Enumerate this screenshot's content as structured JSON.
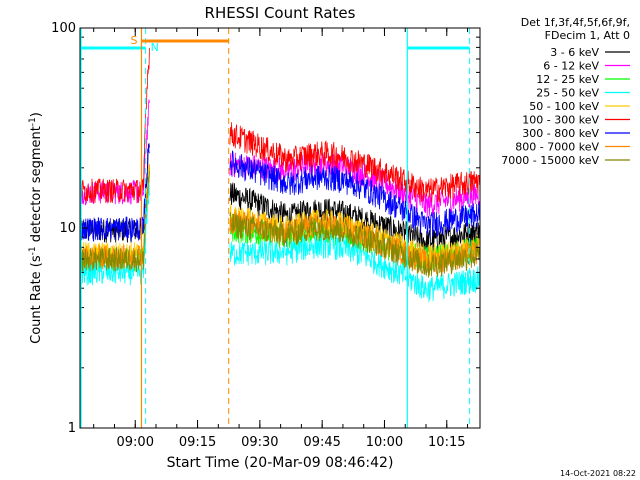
{
  "chart_data": {
    "type": "line",
    "title": "RHESSI Count Rates",
    "xlabel": "Start Time (20-Mar-09 08:46:42)",
    "ylabel_main": "Count Rate (s",
    "ylabel_sup1": "-1",
    "ylabel_mid": " detector segment",
    "ylabel_sup2": "-1",
    "ylabel_end": ")",
    "y_scale": "log",
    "ylim": [
      1,
      100
    ],
    "x_range_minutes": [
      "08:46:42",
      "10:23:00"
    ],
    "x_ticks": [
      "09:00",
      "09:15",
      "09:30",
      "09:45",
      "10:00",
      "10:15"
    ],
    "y_ticks": [
      "1",
      "10",
      "100"
    ],
    "legend_header_1": "Det 1f,3f,4f,5f,6f,9f,",
    "legend_header_2": "FDecim 1, Att 0",
    "legend_placement": "right",
    "timestamp": "14-Oct-2021 08:22",
    "markers": {
      "saa_label": "S",
      "night_label": "N",
      "saa_start": "09:01:30",
      "saa_end": "09:22:30",
      "night_start": "09:02:30",
      "night_end": "10:05:30",
      "night2_start": "10:05:30",
      "night2_end": "10:20:30"
    },
    "data_gap": [
      "09:03:30",
      "09:22:30"
    ],
    "series": [
      {
        "name": "3 - 6 keV",
        "color": "#000000",
        "before_gap": 9.8,
        "after_gap_start": 15.0,
        "hump": 12.0,
        "end": 9.5
      },
      {
        "name": "6 - 12 keV",
        "color": "#ff00ff",
        "before_gap": 15.2,
        "after_gap_start": 21.0,
        "hump": 20.5,
        "end": 14.5
      },
      {
        "name": "12 - 25 keV",
        "color": "#00ff00",
        "before_gap": 7.0,
        "after_gap_start": 10.0,
        "hump": 9.5,
        "end": 7.8
      },
      {
        "name": "25 - 50 keV",
        "color": "#00ffff",
        "before_gap": 6.0,
        "after_gap_start": 7.5,
        "hump": 8.0,
        "end": 5.5
      },
      {
        "name": "50 - 100 keV",
        "color": "#ffcc00",
        "before_gap": 7.5,
        "after_gap_start": 11.5,
        "hump": 10.5,
        "end": 8.0
      },
      {
        "name": "100 - 300 keV",
        "color": "#ff0000",
        "before_gap": 15.5,
        "after_gap_start": 30.0,
        "hump": 23.0,
        "end": 17.0
      },
      {
        "name": "300 - 800 keV",
        "color": "#0000ff",
        "before_gap": 10.0,
        "after_gap_start": 21.5,
        "hump": 17.5,
        "end": 11.5
      },
      {
        "name": "800 - 7000 keV",
        "color": "#ff8800",
        "before_gap": 7.2,
        "after_gap_start": 11.0,
        "hump": 10.0,
        "end": 7.5
      },
      {
        "name": "7000 - 15000 keV",
        "color": "#888800",
        "before_gap": 7.0,
        "after_gap_start": 10.5,
        "hump": 9.8,
        "end": 7.2
      }
    ]
  }
}
